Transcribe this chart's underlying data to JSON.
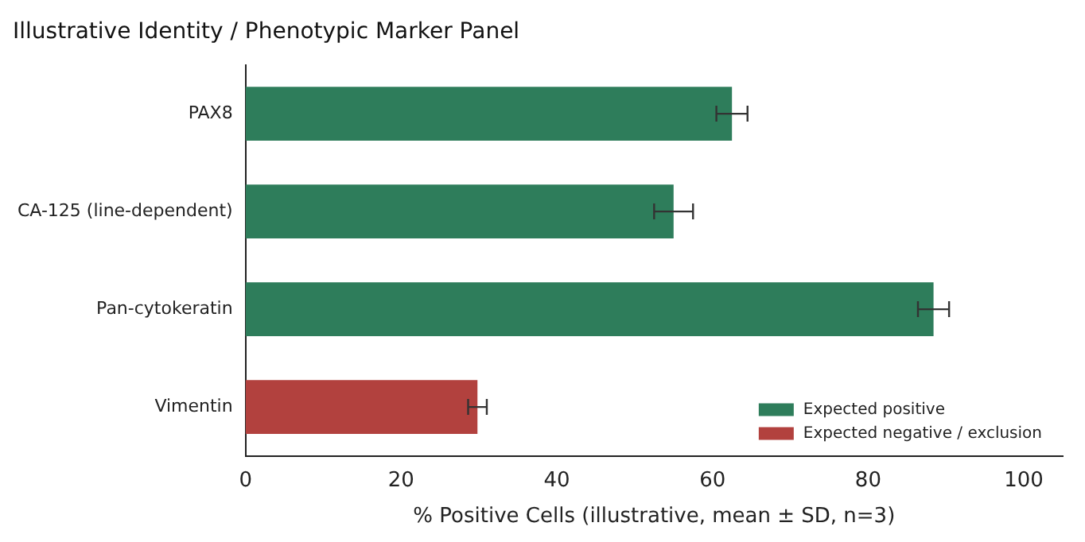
{
  "chart_data": {
    "type": "bar",
    "orientation": "horizontal",
    "title": "Illustrative Identity / Phenotypic Marker Panel",
    "xlabel": "% Positive Cells (illustrative, mean ± SD, n=3)",
    "categories": [
      "PAX8",
      "CA-125 (line-dependent)",
      "Pan-cytokeratin",
      "Vimentin"
    ],
    "series": [
      {
        "name": "Expected positive",
        "color": "#2e7d5b",
        "values": [
          62.5,
          55,
          88.4,
          null
        ],
        "errors": [
          2,
          2.5,
          2,
          null
        ]
      },
      {
        "name": "Expected negative / exclusion",
        "color": "#b2413e",
        "values": [
          null,
          null,
          null,
          29.8
        ],
        "errors": [
          null,
          null,
          null,
          1.2
        ]
      }
    ],
    "xlim": [
      0,
      105
    ],
    "xticks": [
      0,
      20,
      40,
      60,
      80,
      100
    ],
    "grid": false,
    "legend": "bottom right"
  }
}
